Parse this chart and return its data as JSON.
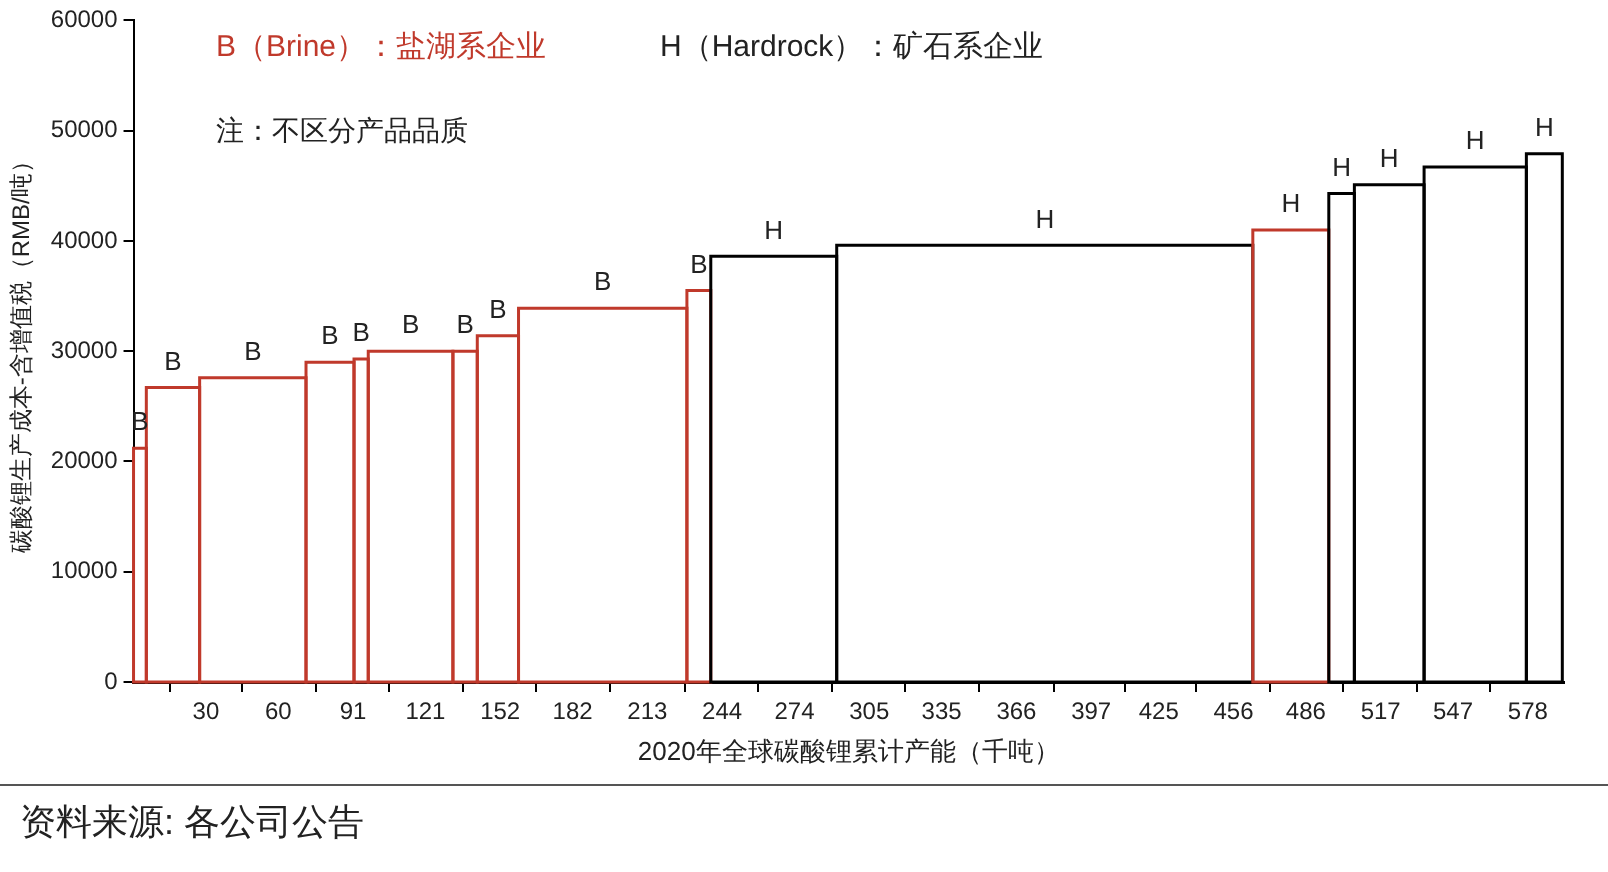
{
  "chart_data": {
    "type": "histogram",
    "xlabel": "2020年全球碳酸锂累计产能（千吨）",
    "ylabel": "碳酸锂生产成本-含增值税（RMB/吨）",
    "bins": [
      0,
      5.3,
      27.4,
      71.5,
      91.4,
      97.3,
      132.4,
      142.5,
      159.6,
      229.4,
      239.3,
      291.5,
      464,
      495.5,
      506.1,
      535,
      577.4,
      592.3
    ],
    "values": [
      21200,
      26700,
      27600,
      29000,
      29300,
      30000,
      30000,
      31400,
      33900,
      35500,
      38600,
      39600,
      41000,
      44300,
      45100,
      46700,
      47900
    ],
    "colors": [
      "#c0392b",
      "#c0392b",
      "#c0392b",
      "#c0392b",
      "#c0392b",
      "#c0392b",
      "#c0392b",
      "#c0392b",
      "#c0392b",
      "#c0392b",
      "#000000",
      "#000000",
      "#c0392b",
      "#000000",
      "#000000",
      "#000000",
      "#000000"
    ],
    "value_labels": [
      "B",
      "B",
      "B",
      "B",
      "B",
      "B",
      "B",
      "B",
      "B",
      "B",
      "H",
      "H",
      "H",
      "H",
      "H",
      "H",
      "H"
    ],
    "xlim": [
      0,
      593
    ],
    "xticks": [
      30,
      60,
      91,
      121,
      152,
      182,
      213,
      244,
      274,
      305,
      335,
      366,
      397,
      425,
      456,
      486,
      517,
      547,
      578
    ],
    "ylim": [
      0,
      60000
    ],
    "yticks": [
      0,
      10000,
      20000,
      30000,
      40000,
      50000,
      60000
    ],
    "annotations": [
      "B（Brine）：盐湖系企业",
      "H（Hardrock）：矿石系企业",
      "注：不区分产品品质",
      "资料来源: 各公司公告"
    ]
  }
}
